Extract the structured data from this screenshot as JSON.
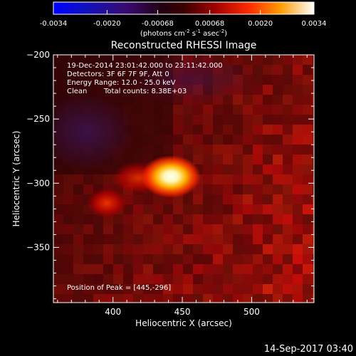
{
  "colorbar": {
    "ticks": [
      "-0.0034",
      "-0.0020",
      "-0.00068",
      "0.00068",
      "0.0020",
      "0.0034"
    ],
    "units_prefix": "(photons cm",
    "units_exp1": "-2",
    "units_mid": " s",
    "units_exp2": "-1",
    "units_mid2": " asec",
    "units_exp3": "-2",
    "units_suffix": ")",
    "range": [
      -0.0034,
      0.0034
    ]
  },
  "chart_data": {
    "type": "heatmap",
    "title": "Reconstructed RHESSI Image",
    "xlabel": "Heliocentric X (arcsec)",
    "ylabel": "Heliocentric Y (arcsec)",
    "xlim": [
      357,
      545
    ],
    "ylim": [
      -393,
      -200
    ],
    "xticks": [
      400,
      450,
      500
    ],
    "yticks": [
      -200,
      -250,
      -300,
      -350
    ],
    "peak": [
      445,
      -296
    ],
    "colormap": "std-gamma-II (blue-black-red-yellow-white)",
    "annotations": {
      "line1": "19-Dec-2014 23:01:42.000 to 23:11:42.000",
      "line2": "Detectors: 3F 6F 7F 9F, Att 0",
      "line3": "Energy Range: 12.0 - 25.0 keV",
      "line4_a": "Clean",
      "line4_b": "Total counts: 8.38E+03",
      "peak_label": "Position of Peak = [445,-296]"
    }
  },
  "footer_timestamp": "14-Sep-2017 03:40"
}
